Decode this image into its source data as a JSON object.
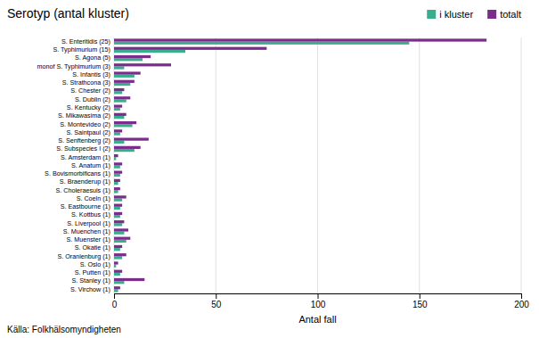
{
  "chart_data": {
    "type": "bar",
    "orientation": "horizontal",
    "title": "Serotyp (antal kluster)",
    "xlabel": "Antal fall",
    "annotations": [
      "Källa: Folkhälsomyndigheten"
    ],
    "categories": [
      "S. Enteritidis (25)",
      "S. Typhimurium (15)",
      "S. Agona (5)",
      "monof S. Typhimurium (3)",
      "S. Infantis (3)",
      "S. Strathcona (3)",
      "S. Chester (2)",
      "S. Dublin (2)",
      "S. Kentucky (2)",
      "S. Mikawasima (2)",
      "S. Montevideo (2)",
      "S. Saintpaul (2)",
      "S. Senftenberg (2)",
      "S. Subspecies I (2)",
      "S. Amsterdam (1)",
      "S. Anatum (1)",
      "S. Bovismorbificans (1)",
      "S. Braenderup (1)",
      "S. Choleraesuis (1)",
      "S. Coeln (1)",
      "S. Eastbourne (1)",
      "S. Kottbus (1)",
      "S. Liverpool (1)",
      "S. Muenchen (1)",
      "S. Muenster (1)",
      "S. Okatie (1)",
      "S. Oranienburg (1)",
      "S. Oslo (1)",
      "S. Putten (1)",
      "S. Stanley (1)",
      "S. Virchow (1)"
    ],
    "series": [
      {
        "name": "i kluster",
        "color": "#3AAD8C",
        "values": [
          145,
          35,
          14,
          5,
          10,
          8,
          4,
          6,
          3,
          5,
          9,
          3,
          5,
          10,
          1,
          3,
          3,
          2,
          2,
          4,
          3,
          3,
          4,
          5,
          6,
          3,
          4,
          1,
          3,
          5,
          2
        ]
      },
      {
        "name": "totalt",
        "color": "#7B2D8B",
        "values": [
          183,
          75,
          18,
          28,
          13,
          10,
          5,
          8,
          4,
          6,
          11,
          4,
          17,
          13,
          2,
          4,
          4,
          3,
          3,
          6,
          4,
          4,
          5,
          7,
          8,
          4,
          6,
          2,
          4,
          15,
          3
        ]
      }
    ],
    "xlim": [
      0,
      200
    ],
    "xticks": [
      0,
      50,
      100,
      150,
      200
    ],
    "grid": true,
    "legend": "upper right"
  }
}
